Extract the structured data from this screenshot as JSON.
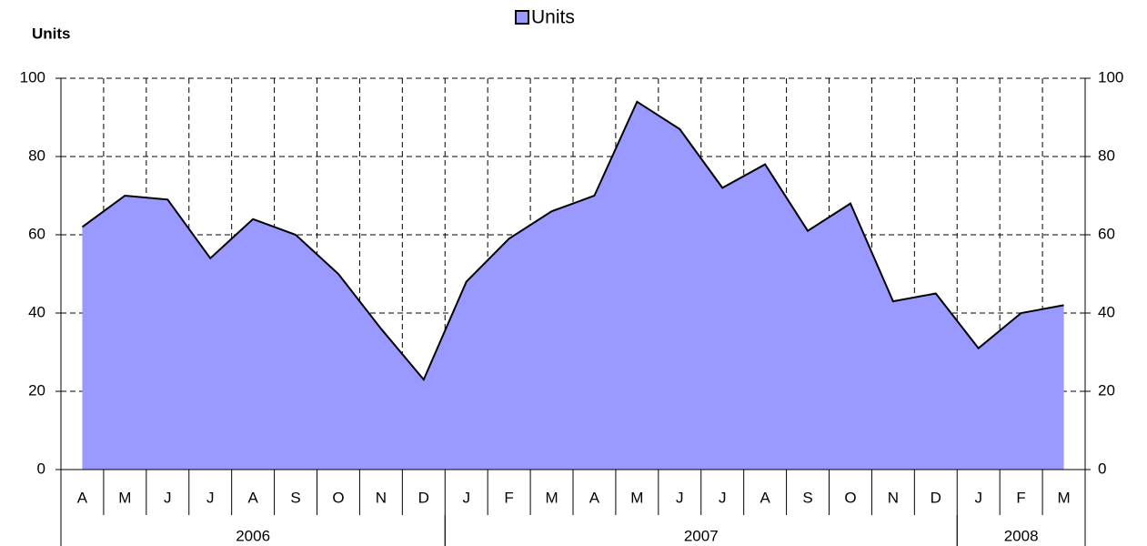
{
  "chart_data": {
    "type": "area",
    "y_label": "Units",
    "categories": [
      "A",
      "M",
      "J",
      "J",
      "A",
      "S",
      "O",
      "N",
      "D",
      "J",
      "F",
      "M",
      "A",
      "M",
      "J",
      "J",
      "A",
      "S",
      "O",
      "N",
      "D",
      "J",
      "F",
      "M"
    ],
    "x_groups": [
      {
        "label": "2006",
        "count": 9
      },
      {
        "label": "2007",
        "count": 12
      },
      {
        "label": "2008",
        "count": 3
      }
    ],
    "series": [
      {
        "name": "Units",
        "color": "#9999ff",
        "values": [
          62,
          70,
          69,
          54,
          64,
          60,
          50,
          36,
          23,
          48,
          59,
          66,
          70,
          94,
          87,
          72,
          78,
          61,
          68,
          43,
          45,
          31,
          40,
          42
        ]
      }
    ],
    "ylim": [
      0,
      100
    ],
    "yticks": [
      0,
      20,
      40,
      60,
      80,
      100
    ],
    "y2lim": [
      0,
      100
    ],
    "y2ticks": [
      0,
      20,
      40,
      60,
      80,
      100
    ],
    "grid": true,
    "legend": "top"
  }
}
